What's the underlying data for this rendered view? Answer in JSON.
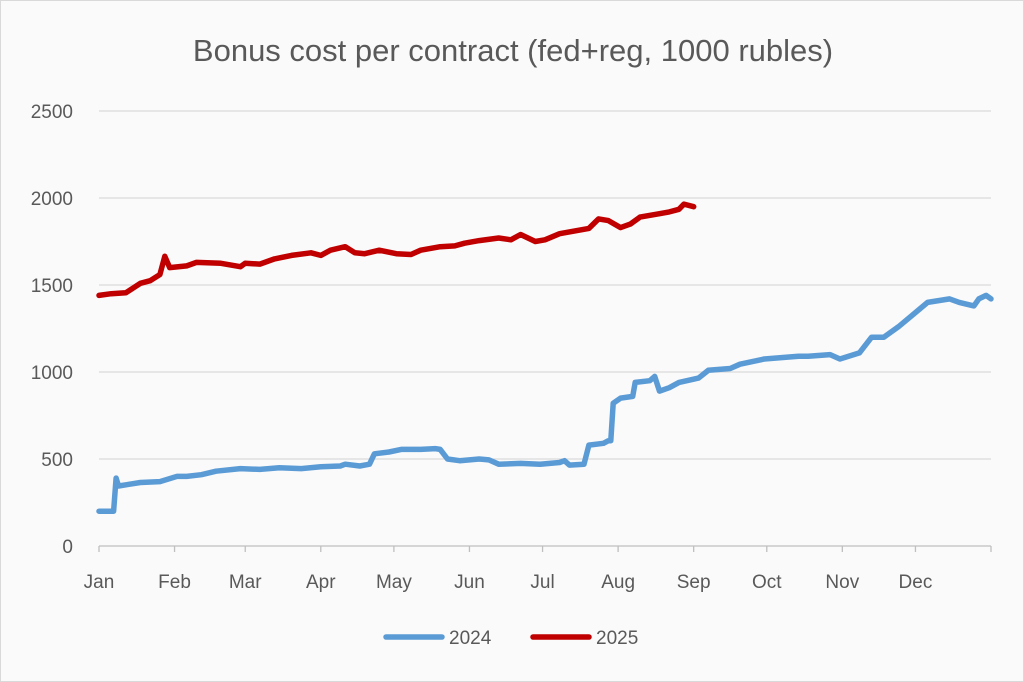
{
  "chart_data": {
    "type": "line",
    "title": "Bonus cost per contract (fed+reg, 1000 rubles)",
    "xlabel": "",
    "ylabel": "",
    "x_unit": "day of year",
    "xlim": [
      0,
      366
    ],
    "ylim": [
      0,
      2500
    ],
    "y_ticks": [
      0,
      500,
      1000,
      1500,
      2000,
      2500
    ],
    "x_ticks": [
      {
        "label": "Jan",
        "day": 0
      },
      {
        "label": "Feb",
        "day": 31
      },
      {
        "label": "Mar",
        "day": 60
      },
      {
        "label": "Apr",
        "day": 91
      },
      {
        "label": "May",
        "day": 121
      },
      {
        "label": "Jun",
        "day": 152
      },
      {
        "label": "Jul",
        "day": 182
      },
      {
        "label": "Aug",
        "day": 213
      },
      {
        "label": "Sep",
        "day": 244
      },
      {
        "label": "Oct",
        "day": 274
      },
      {
        "label": "Nov",
        "day": 305
      },
      {
        "label": "Dec",
        "day": 335
      }
    ],
    "grid": true,
    "legend_position": "bottom",
    "series": [
      {
        "name": "2024",
        "color": "#5b9bd5",
        "x": [
          0,
          6,
          7,
          8,
          17,
          25,
          32,
          36,
          42,
          48,
          58,
          66,
          74,
          83,
          91,
          99,
          101,
          107,
          111,
          113,
          119,
          124,
          132,
          138,
          140,
          143,
          148,
          156,
          160,
          164,
          173,
          181,
          189,
          191,
          193,
          199,
          201,
          207,
          209,
          210,
          211,
          214,
          219,
          220,
          226,
          228,
          230,
          234,
          238,
          246,
          250,
          259,
          263,
          273,
          287,
          291,
          300,
          304,
          312,
          317,
          322,
          328,
          334,
          340,
          349,
          353,
          359,
          361,
          364,
          366
        ],
        "y": [
          200,
          200,
          390,
          345,
          365,
          370,
          400,
          400,
          410,
          430,
          445,
          440,
          450,
          445,
          455,
          460,
          470,
          460,
          470,
          530,
          540,
          555,
          555,
          560,
          555,
          500,
          490,
          500,
          495,
          470,
          475,
          470,
          480,
          490,
          465,
          470,
          580,
          590,
          605,
          605,
          820,
          850,
          860,
          940,
          950,
          975,
          890,
          910,
          940,
          965,
          1010,
          1020,
          1045,
          1075,
          1090,
          1090,
          1100,
          1075,
          1110,
          1200,
          1200,
          1260,
          1330,
          1400,
          1420,
          1400,
          1380,
          1420,
          1440,
          1420
        ]
      },
      {
        "name": "2025",
        "color": "#c00000",
        "x": [
          0,
          5,
          11,
          17,
          21,
          25,
          27,
          29,
          36,
          40,
          50,
          58,
          60,
          66,
          72,
          79,
          87,
          91,
          95,
          101,
          105,
          109,
          115,
          122,
          128,
          132,
          140,
          146,
          150,
          156,
          164,
          169,
          173,
          179,
          183,
          189,
          195,
          201,
          205,
          209,
          214,
          218,
          222,
          230,
          234,
          238,
          240,
          244
        ],
        "y": [
          1440,
          1450,
          1455,
          1510,
          1525,
          1560,
          1665,
          1600,
          1610,
          1630,
          1625,
          1605,
          1625,
          1620,
          1650,
          1670,
          1685,
          1670,
          1700,
          1720,
          1685,
          1680,
          1700,
          1680,
          1675,
          1700,
          1720,
          1725,
          1740,
          1755,
          1770,
          1760,
          1790,
          1750,
          1760,
          1795,
          1810,
          1825,
          1880,
          1870,
          1830,
          1850,
          1890,
          1910,
          1920,
          1935,
          1965,
          1950
        ]
      }
    ]
  }
}
